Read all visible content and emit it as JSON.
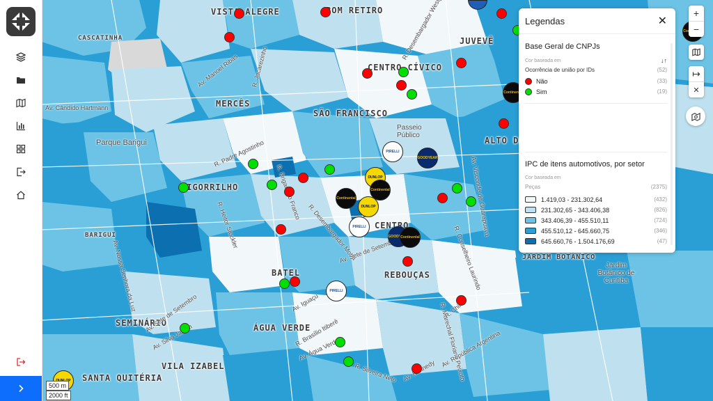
{
  "map": {
    "neighborhoods": [
      "VISTA ALEGRE",
      "BOM RETIRO",
      "JUVEVÊ",
      "CASCATINHA",
      "CENTRO CÍVICO",
      "MERCÊS",
      "SÃO FRANCISCO",
      "ALTO DA",
      "BIGORRILHO",
      "CENTRO",
      "BATEL",
      "REBOUÇAS",
      "SEMINÁRIO",
      "ÁGUA VERDE",
      "VILA IZABEL",
      "SANTA QUITÉRIA",
      "BARIGUI",
      "JARDIM BOTÂNICO"
    ],
    "places": [
      "Parque Barigui",
      "Passeio Público",
      "Jardim Botânico de Curitiba"
    ],
    "streets": [
      "Av. Manoel Ribas",
      "Av. Cândido Hartmann",
      "R. Jacarezinho",
      "R. Padre Agostinho",
      "R. Brigadeiro Franco",
      "R. Desembargador Motta",
      "R. Heitor Stockler",
      "R. Conselheiro Laurindo",
      "Av. Sete de Setembro",
      "R. Marechal Floriano Peixoto",
      "Av. Iguaçu",
      "Av. Água Verde",
      "R. Brasílio Itiberê",
      "Av. Silva Jardim",
      "Av. República Argentina",
      "Av. Kennedy",
      "R. Chile",
      "R. Silveira Neto",
      "Av. Sete de Setembro",
      "R. Desembargador Westphalen",
      "Av. Visconde de Guarapuava",
      "Av. Nossa Senhora da Luz"
    ],
    "scale": {
      "metric": "500 m",
      "imperial": "2000 ft"
    }
  },
  "brands": {
    "continental": "Continental",
    "dunlop": "DUNLOP",
    "goodyear": "GOODYEAR",
    "pirelli": "PIRELLI"
  },
  "legend": {
    "title": "Legendas",
    "layer1": {
      "title": "Base Geral de CNPJs",
      "based_on": "Cor baseada em",
      "attribute": "Ocorrência de união por IDs",
      "total": "(52)",
      "items": [
        {
          "label": "Não",
          "count": "(33)",
          "color": "#ff0000"
        },
        {
          "label": "Sim",
          "count": "(19)",
          "color": "#00e000"
        }
      ]
    },
    "layer2": {
      "title": "IPC de itens automotivos, por setor",
      "based_on": "Cor baseada em",
      "attribute": "Peças",
      "total": "(2375)",
      "items": [
        {
          "label": "1.419,03 - 231.302,64",
          "count": "(432)",
          "color": "#f2f7fa"
        },
        {
          "label": "231.302,65 - 343.406,38",
          "count": "(826)",
          "color": "#bfe0ee"
        },
        {
          "label": "343.406,39 - 455.510,11",
          "count": "(724)",
          "color": "#6cc3e5"
        },
        {
          "label": "455.510,12 - 645.660,75",
          "count": "(346)",
          "color": "#2a9fd6"
        },
        {
          "label": "645.660,76 - 1.504.176,69",
          "count": "(47)",
          "color": "#0b6fb0"
        }
      ]
    }
  }
}
